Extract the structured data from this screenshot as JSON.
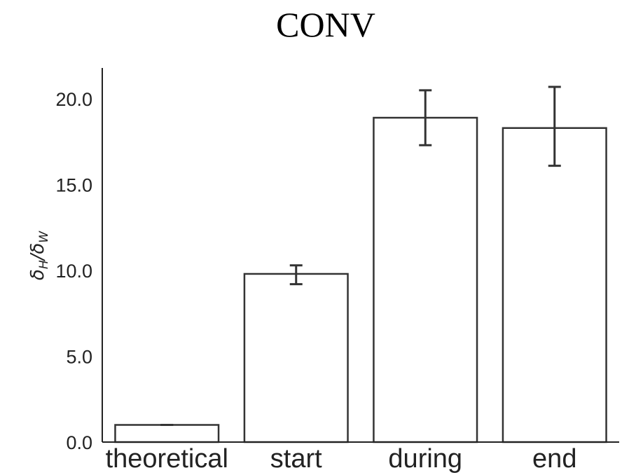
{
  "chart_data": {
    "type": "bar",
    "title": "CONV",
    "xlabel": "",
    "ylabel": "δH/δW",
    "ylabel_parts": {
      "base1": "δ",
      "sub1": "H",
      "sep": "/δ",
      "sub2": "W"
    },
    "categories": [
      "theoretical",
      "start",
      "during",
      "end"
    ],
    "values": [
      1.0,
      9.8,
      18.9,
      18.3
    ],
    "error_low": [
      1.0,
      9.2,
      17.3,
      16.1
    ],
    "error_high": [
      1.0,
      10.3,
      20.5,
      20.7
    ],
    "ylim": [
      0,
      21.8
    ],
    "yticks": [
      "0.0",
      "5.0",
      "10.0",
      "15.0",
      "20.0"
    ],
    "ytick_values": [
      0,
      5,
      10,
      15,
      20
    ],
    "grid": false,
    "colors": {
      "bar_fill": "#ffffff",
      "bar_edge": "#333333",
      "axis": "#222222"
    }
  }
}
